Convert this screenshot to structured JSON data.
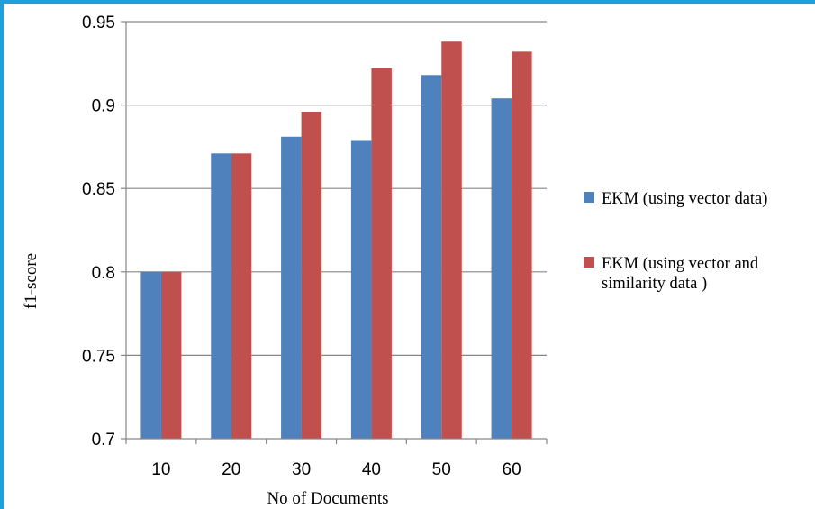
{
  "chart_data": {
    "type": "bar",
    "categories": [
      "10",
      "20",
      "30",
      "40",
      "50",
      "60"
    ],
    "series": [
      {
        "name": "EKM (using vector data)",
        "name_lines": [
          "EKM (using vector data)"
        ],
        "color": "#4f81bd",
        "values": [
          0.8,
          0.871,
          0.881,
          0.879,
          0.918,
          0.904
        ]
      },
      {
        "name": "EKM (using vector and similarity data )",
        "name_lines": [
          "EKM (using vector and",
          "similarity data )"
        ],
        "color": "#c0504d",
        "values": [
          0.8,
          0.871,
          0.896,
          0.922,
          0.938,
          0.932
        ]
      }
    ],
    "xlabel": "No of Documents",
    "ylabel": "f1-score",
    "ylim": [
      0.7,
      0.95
    ],
    "yticks": [
      "0.7",
      "0.75",
      "0.8",
      "0.85",
      "0.9",
      "0.95"
    ],
    "grid": true,
    "legend_position": "right"
  },
  "colors": {
    "frame_border": "#1ea0dc",
    "gridline": "#868686",
    "axis": "#868686"
  }
}
